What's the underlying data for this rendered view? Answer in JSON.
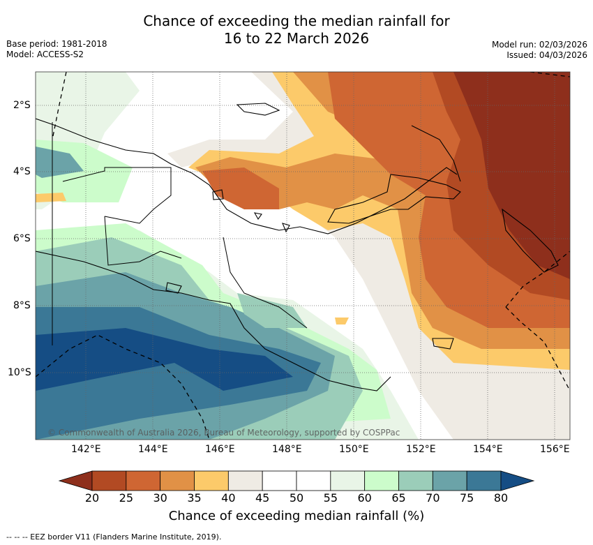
{
  "title": {
    "line1": "Chance of exceeding the median rainfall for",
    "line2": "16 to 22 March 2026"
  },
  "meta": {
    "base_period": "Base period: 1981-2018",
    "model": "Model: ACCESS-S2",
    "model_run": "Model run: 02/03/2026",
    "issued": "Issued: 04/03/2026"
  },
  "axes": {
    "lon_ticks": [
      "142°E",
      "144°E",
      "146°E",
      "148°E",
      "150°E",
      "152°E",
      "154°E",
      "156°E"
    ],
    "lat_ticks": [
      "2°S",
      "4°S",
      "6°S",
      "8°S",
      "10°S"
    ]
  },
  "colorbar": {
    "labels": [
      "20",
      "25",
      "30",
      "35",
      "40",
      "45",
      "50",
      "55",
      "60",
      "65",
      "70",
      "75",
      "80"
    ],
    "colors": [
      "#8e2f1c",
      "#b24a23",
      "#cf6633",
      "#e19146",
      "#fcca6a",
      "#efebe4",
      "#ffffff",
      "#ffffff",
      "#e9f5e7",
      "#ccfccb",
      "#9bcdb9",
      "#6ba3a8",
      "#3b7896",
      "#154d84"
    ],
    "title": "Chance of exceeding median rainfall (%)"
  },
  "copyright": "© Commonwealth of Australia 2026, Bureau of Meteorology, supported by COSPPac",
  "footnote": "-- -- -- EEZ border V11 (Flanders Marine Institute, 2019)."
}
